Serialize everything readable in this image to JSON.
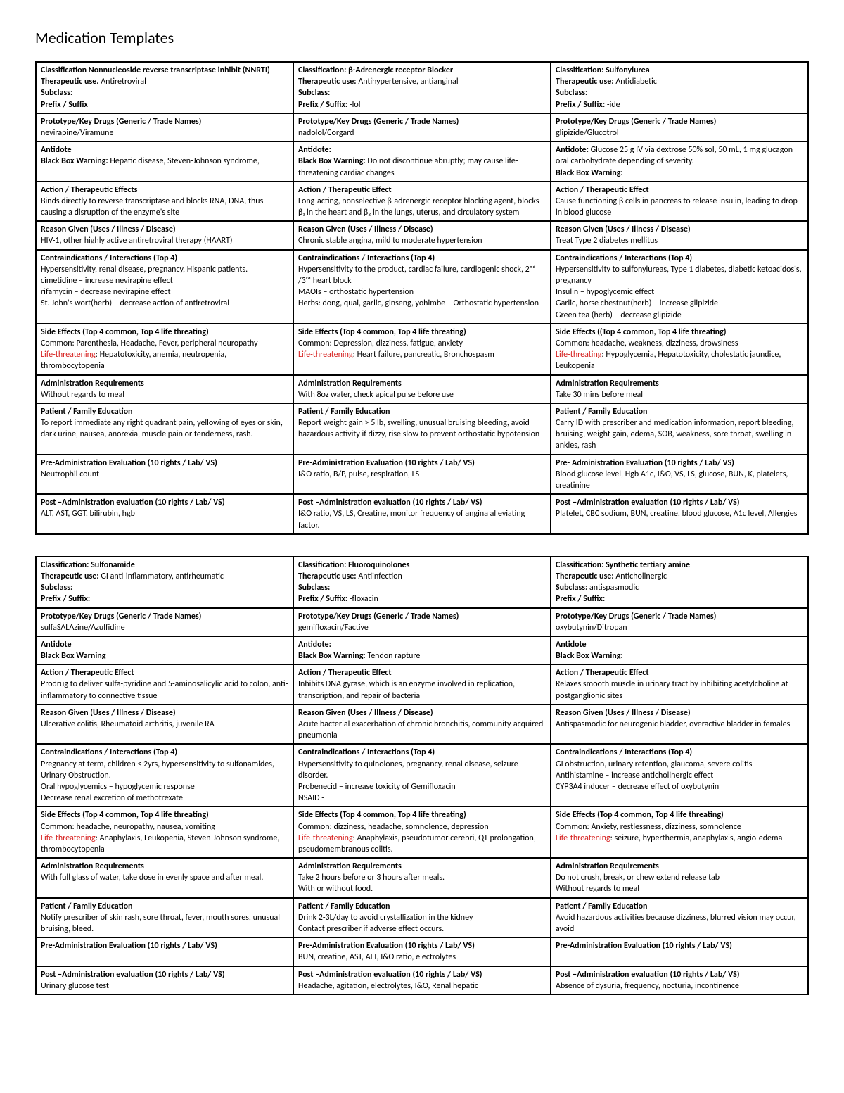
{
  "pageTitle": "Medication Templates",
  "colors": {
    "lifeThreatening": "#d6201f",
    "border": "#000000",
    "text": "#000000",
    "background": "#ffffff"
  },
  "labels": {
    "classification": "Classification:",
    "therapeuticUse": "Therapeutic use.",
    "therapeuticUseColon": "Therapeutic use:",
    "subclass": "Subclass:",
    "prefixSuffix": "Prefix / Suffix",
    "prefixSuffixColon": "Prefix / Suffix:",
    "prototype": "Prototype/Key Drugs (Generic / Trade Names)",
    "antidote": "Antidote",
    "antidoteColon": "Antidote:",
    "blackBox": "Black Box Warning:",
    "blackBoxPlain": "Black Box Warning",
    "actionEffects": "Action / Therapeutic Effects",
    "actionEffect": "Action / Therapeutic Effect",
    "reason": "Reason Given (Uses / Illness / Disease)",
    "contra": "Contraindications / Interactions (Top 4)",
    "sideEffects": "Side Effects (Top 4 common, Top 4 life threating)",
    "sideEffectsParen": "Side Effects ((Top 4 common, Top 4 life threating)",
    "common": "Common",
    "life": "Life-threatening",
    "lifeAlt": "Life-threating",
    "admin": "Administration Requirements",
    "patientEd": "Patient / Family Education",
    "preAdmin": "Pre-Administration Evaluation (10 rights / Lab/ VS)",
    "preAdminAlt": "Pre- Administration Evaluation (10 rights / Lab/ VS)",
    "postAdmin": "Post –Administration evaluation (10 rights / Lab/ VS)"
  },
  "table1": [
    {
      "classLine": "Classification Nonnucleoside reverse transcriptase inhibit (NNRTI)",
      "therapeutic": "Antiretroviral",
      "subclass": "",
      "prefixSuffix": "",
      "prototype": "nevirapine/Viramune",
      "antidote": "",
      "blackBox": "Hepatic disease, Steven-Johnson syndrome,",
      "action": "Binds directly to reverse transcriptase and blocks RNA, DNA, thus causing a disruption of the enzyme's site",
      "reason": "HIV-1, other highly active antiretroviral therapy (HAART)",
      "contra": [
        "Hypersensitivity, renal disease, pregnancy, Hispanic patients.",
        "cimetidine – increase nevirapine effect",
        "rifamycin – decrease nevirapine effect",
        "St. John's wort(herb) – decrease action of antiretroviral"
      ],
      "seCommon": ": Parenthesia, Headache, Fever, peripheral neuropathy",
      "seLife": ": Hepatotoxicity, anemia, neutropenia, thrombocytopenia",
      "admin": "Without regards to meal",
      "patientEd": "To report immediate any right quadrant pain, yellowing of eyes or skin, dark urine, nausea, anorexia, muscle pain or tenderness, rash.",
      "preAdmin": "Neutrophil count",
      "postAdmin": "ALT, AST, GGT, bilirubin, hgb"
    },
    {
      "classLine": "Classification: β-Adrenergic receptor Blocker",
      "therapeutic": "Antihypertensive, antianginal",
      "subclass": "",
      "prefixSuffix": "-lol",
      "prototype": "nadolol/Corgard",
      "antidote": "",
      "blackBox": "Do not discontinue abruptly; may cause life-threatening cardiac changes",
      "action": "Long-acting, nonselective β-adrenergic receptor blocking agent, blocks β₁ in the heart and β₂ in the lungs, uterus, and circulatory system",
      "reason": "Chronic stable angina, mild to moderate hypertension",
      "contra": [
        "Hypersensitivity to the product, cardiac failure, cardiogenic shock, 2ⁿᵈ /3ʳᵈ heart block",
        "MAOIs – orthostatic hypertension",
        "Herbs: dong, quai, garlic, ginseng, yohimbe – Orthostatic hypertension"
      ],
      "seCommon": ": Depression, dizziness, fatigue, anxiety",
      "seLife": ": Heart failure, pancreatic, Bronchospasm",
      "admin": "With 8oz water, check apical pulse before use",
      "patientEd": "Report weight gain > 5 lb, swelling, unusual bruising bleeding, avoid hazardous activity if dizzy, rise slow to prevent orthostatic hypotension",
      "preAdmin": "I&O ratio, B/P, pulse, respiration, LS",
      "postAdmin": "I&O ratio, VS, LS, Creatine, monitor frequency of angina alleviating factor."
    },
    {
      "classLine": "Classification: Sulfonylurea",
      "therapeutic": "Antidiabetic",
      "subclass": "",
      "prefixSuffix": "-ide",
      "prototype": "glipizide/Glucotrol",
      "antidote": "Glucose 25 g IV via dextrose 50% sol, 50 mL, 1 mg glucagon oral carbohydrate depending of severity.",
      "blackBox": "",
      "action": "Cause functioning β cells in pancreas to release insulin, leading to drop in blood glucose",
      "reason": "Treat Type 2 diabetes mellitus",
      "contra": [
        "Hypersensitivity to sulfonylureas, Type 1 diabetes, diabetic ketoacidosis, pregnancy",
        "Insulin – hypoglycemic effect",
        "Garlic, horse chestnut(herb) – increase glipizide",
        "Green tea (herb) – decrease glipizide"
      ],
      "seCommon": ": headache, weakness, dizziness, drowsiness",
      "seLife": ": Hypoglycemia, Hepatotoxicity, cholestatic jaundice, Leukopenia",
      "admin": "Take 30 mins before meal",
      "patientEd": "Carry ID with prescriber and medication information, report bleeding, bruising, weight gain, edema, SOB, weakness, sore throat, swelling in ankles, rash",
      "preAdmin": "Blood glucose level, Hgb A1c, I&O, VS, LS, glucose, BUN, K, platelets, creatinine",
      "postAdmin": "Platelet, CBC sodium, BUN, creatine, blood glucose, A1c level, Allergies"
    }
  ],
  "table2": [
    {
      "classLine": "Classification: Sulfonamide",
      "therapeutic": "GI anti-inflammatory, antirheumatic",
      "subclass": "",
      "prefixSuffix": "",
      "prototype": "sulfaSALAzine/Azulfidine",
      "antidote": "",
      "blackBox": "",
      "action": "Prodrug to deliver sulfa-pyridine and 5-aminosalicylic acid to colon, anti-inflammatory to connective tissue",
      "reason": "Ulcerative colitis, Rheumatoid arthritis, juvenile RA",
      "contra": [
        "Pregnancy at term, children < 2yrs, hypersensitivity to sulfonamides, Urinary Obstruction.",
        "Oral hypoglycemics – hypoglycemic response",
        "Decrease renal excretion of methotrexate"
      ],
      "seCommon": ": headache, neuropathy, nausea, vomiting",
      "seLife": ": Anaphylaxis, Leukopenia, Steven-Johnson syndrome, thrombocytopenia",
      "admin": "With full glass of water, take dose in evenly space and after meal.",
      "patientEd": "Notify prescriber of skin rash, sore throat, fever, mouth sores, unusual bruising, bleed.",
      "preAdmin": "",
      "postAdmin": "Urinary glucose test"
    },
    {
      "classLine": "Classification: Fluoroquinolones",
      "therapeutic": "Antiinfection",
      "subclass": "",
      "prefixSuffix": "-floxacin",
      "prototype": "gemifloxacin/Factive",
      "antidote": "",
      "blackBox": "Tendon rapture",
      "action": "Inhibits DNA gyrase, which is an enzyme involved in replication, transcription, and repair of bacteria",
      "reason": "Acute bacterial exacerbation of chronic bronchitis, community-acquired pneumonia",
      "contra": [
        "Hypersensitivity to quinolones, pregnancy, renal disease, seizure disorder.",
        "Probenecid – increase toxicity of Gemifloxacin",
        "NSAID -"
      ],
      "seCommon": ": dizziness, headache, somnolence, depression",
      "seLife": ": Anaphylaxis, pseudotumor cerebri, QT prolongation, pseudomembranous colitis.",
      "admin": "Take 2 hours before or 3 hours after meals.\nWith or without food.",
      "patientEd": "Drink 2-3L/day to avoid crystallization in the kidney\nContact prescriber if adverse effect occurs.",
      "preAdmin": "BUN, creatine, AST, ALT, I&O ratio, electrolytes",
      "postAdmin": "Headache, agitation, electrolytes, I&O, Renal hepatic"
    },
    {
      "classLine": "Classification: Synthetic tertiary amine",
      "therapeutic": "Anticholinergic",
      "subclass": "antispasmodic",
      "prefixSuffix": "",
      "prototype": "oxybutynin/Ditropan",
      "antidote": "",
      "blackBox": "",
      "action": "Relaxes smooth muscle in urinary tract by inhibiting acetylcholine at postganglionic sites",
      "reason": "Antispasmodic for neurogenic bladder, overactive bladder in females",
      "contra": [
        "GI obstruction, urinary retention, glaucoma, severe colitis",
        "Antihistamine – increase anticholinergic effect",
        "CYP3A4 inducer – decrease effect of oxybutynin"
      ],
      "seCommon": ": Anxiety, restlessness, dizziness, somnolence",
      "seLife": ": seizure, hyperthermia, anaphylaxis, angio-edema",
      "admin": "Do not crush, break, or chew extend release tab\nWithout regards to meal",
      "patientEd": "Avoid hazardous activities because dizziness, blurred vision may occur, avoid",
      "preAdmin": "",
      "postAdmin": "Absence of dysuria, frequency, nocturia, incontinence"
    }
  ]
}
